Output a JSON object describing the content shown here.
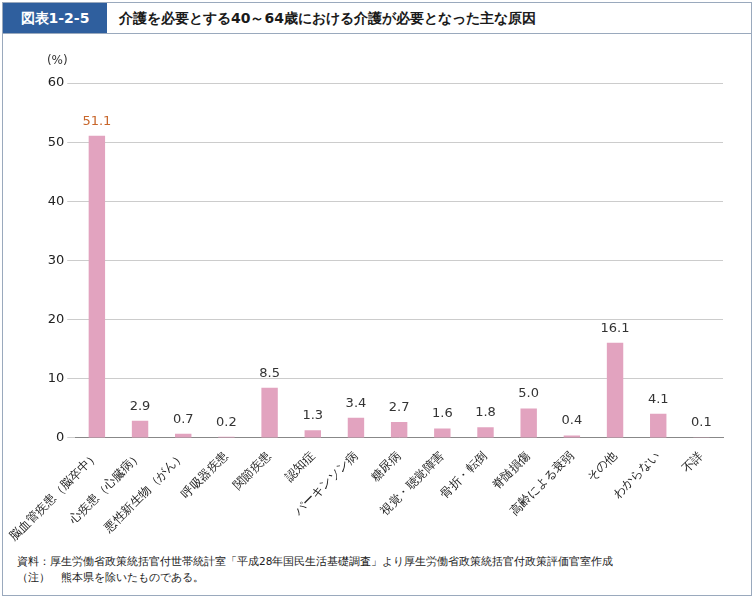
{
  "header": {
    "figure_number": "図表1-2-5"
  },
  "chart_data": {
    "type": "bar",
    "title": "介護を必要とする40～64歳における介護が必要となった主な原因",
    "y_label": "(%)",
    "categories": [
      "脳血管疾患（脳卒中）",
      "心疾患（心臓病）",
      "悪性新生物（がん）",
      "呼吸器疾患",
      "関節疾患",
      "認知症",
      "パーキンソン病",
      "糖尿病",
      "視覚・聴覚障害",
      "骨折・転倒",
      "脊髄損傷",
      "高齢による衰弱",
      "その他",
      "わからない",
      "不詳"
    ],
    "values": [
      51.1,
      2.9,
      0.7,
      0.2,
      8.5,
      1.3,
      3.4,
      2.7,
      1.6,
      1.8,
      5.0,
      0.4,
      16.1,
      4.1,
      0.1
    ],
    "value_labels": [
      "51.1",
      "2.9",
      "0.7",
      "0.2",
      "8.5",
      "1.3",
      "3.4",
      "2.7",
      "1.6",
      "1.8",
      "5.0",
      "0.4",
      "16.1",
      "4.1",
      "0.1"
    ],
    "color": "#e2a3bf",
    "ylim": [
      0,
      60
    ],
    "yticks": [
      0,
      10,
      20,
      30,
      40,
      50,
      60
    ],
    "grid": true,
    "data_labels": true
  },
  "footer": {
    "source": "資料：厚生労働省政策統括官付世帯統計室「平成28年国民生活基礎調査」より厚生労働省政策統括官付政策評価官室作成",
    "note": "（注）　熊本県を除いたものである。"
  }
}
